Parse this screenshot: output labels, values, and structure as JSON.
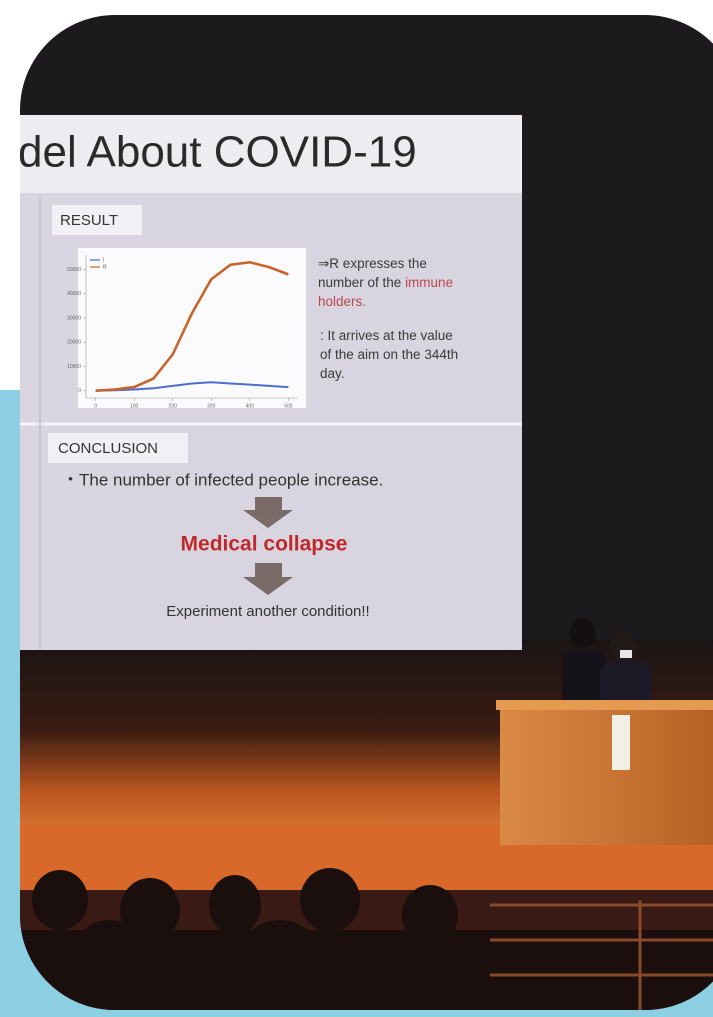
{
  "slide": {
    "title": "del About COVID-19",
    "result_label": "RESULT",
    "chart": {
      "type": "line",
      "x": [
        0,
        50,
        100,
        150,
        200,
        250,
        300,
        350,
        400,
        450,
        500
      ],
      "series": [
        {
          "name": "I",
          "color": "#4a6fd0",
          "values": [
            0,
            200,
            500,
            1000,
            2000,
            3000,
            3500,
            3000,
            2500,
            2000,
            1500
          ]
        },
        {
          "name": "R",
          "color": "#c8632a",
          "values": [
            0,
            500,
            1500,
            5000,
            15000,
            32000,
            46000,
            52000,
            53000,
            51000,
            48000
          ]
        }
      ],
      "xlim": [
        -25,
        525
      ],
      "ylim": [
        -3000,
        56000
      ],
      "xticks": [
        0,
        100,
        200,
        300,
        400,
        500
      ],
      "yticks": [
        0,
        10000,
        20000,
        30000,
        40000,
        50000
      ]
    },
    "note_lines": [
      [
        {
          "text": "⇒R expresses the"
        }
      ],
      [
        {
          "text": "number of the "
        },
        {
          "text": "immune",
          "emphasis": true
        }
      ],
      [
        {
          "text": "holders.",
          "emphasis": true
        }
      ],
      [
        {
          "text": ": It arrives at the value"
        }
      ],
      [
        {
          "text": "of the aim on the 344th"
        }
      ],
      [
        {
          "text": "day."
        }
      ]
    ],
    "conclusion_label": "CONCLUSION",
    "conclusion_text": "・The number of infected people increase.",
    "collapse_text": "Medical collapse",
    "experiment_text": "Experiment another condition!!"
  }
}
